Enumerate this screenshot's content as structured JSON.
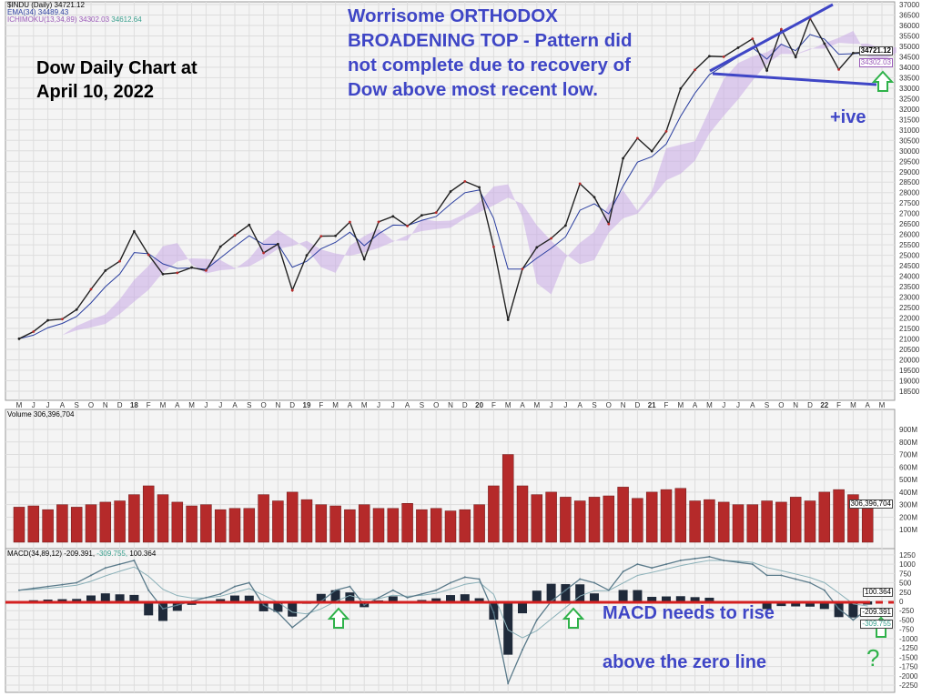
{
  "legend": {
    "price": "$INDU (Daily) 34721.12",
    "ema": "EMA(34) 34489.43",
    "ichimoku": "ICHIMOKU(13,34,89) 34302.03",
    "ichimoku_b": "34612.64",
    "volume": "Volume 306,396,704",
    "macd": "MACD(34,89,12) -209.391,",
    "macd_signal": "-309.755,",
    "macd_hist": "100.364"
  },
  "value_boxes": {
    "price": "34721.12",
    "ichimoku": "34302.03",
    "volume": "306,396,704",
    "macd_hist": "100.364",
    "macd": "-209.391",
    "macd_signal": "-309.755"
  },
  "annotations": {
    "title_line1": "Dow Daily Chart at",
    "title_line2": "April 10, 2022",
    "pattern_line1": "Worrisome ORTHODOX",
    "pattern_line2": "BROADENING TOP - Pattern did",
    "pattern_line3": "not complete due to recovery of",
    "pattern_line4": "Dow above most recent low.",
    "positive": "+ive",
    "macd_line1": "MACD needs to rise",
    "macd_line2": "above the zero line",
    "question": "?"
  },
  "colors": {
    "annotation_blue": "#3f46c6",
    "arrow_green": "#2fb24a",
    "zero_line_red": "#d42020",
    "ema_blue": "#2b3fa0",
    "cloud_purple": "#c9a9e6",
    "cloud_green": "#a9d4cc",
    "volume_red": "#b52a2a",
    "macd_line": "#5a7a8a"
  },
  "chart_data": [
    {
      "type": "line",
      "title": "$INDU (Daily)",
      "x_tick_labels": [
        "M",
        "J",
        "J",
        "A",
        "S",
        "O",
        "N",
        "D",
        "18",
        "F",
        "M",
        "A",
        "M",
        "J",
        "J",
        "A",
        "S",
        "O",
        "N",
        "D",
        "19",
        "F",
        "M",
        "A",
        "M",
        "J",
        "J",
        "A",
        "S",
        "O",
        "N",
        "D",
        "20",
        "F",
        "M",
        "A",
        "M",
        "J",
        "J",
        "A",
        "S",
        "O",
        "N",
        "D",
        "21",
        "F",
        "M",
        "A",
        "M",
        "J",
        "J",
        "A",
        "S",
        "O",
        "N",
        "D",
        "22",
        "F",
        "M",
        "A",
        "M"
      ],
      "y_ticks": [
        18500,
        19000,
        19500,
        20000,
        20500,
        21000,
        21500,
        22000,
        22500,
        23000,
        23500,
        24000,
        24500,
        25000,
        25500,
        26000,
        26500,
        27000,
        27500,
        28000,
        28500,
        29000,
        29500,
        30000,
        30500,
        31000,
        31500,
        32000,
        32500,
        33000,
        33500,
        34000,
        34500,
        35000,
        35500,
        36000,
        36500,
        37000
      ],
      "ylim": [
        18500,
        37000
      ],
      "grid": true,
      "series": [
        {
          "name": "$INDU",
          "values": [
            21009,
            21350,
            21891,
            21948,
            22405,
            23377,
            24272,
            24719,
            26149,
            25029,
            24103,
            24163,
            24416,
            24271,
            25415,
            25965,
            26458,
            25116,
            25538,
            23327,
            24999,
            25916,
            25929,
            26593,
            24815,
            26600,
            26864,
            26403,
            26917,
            27046,
            28051,
            28538,
            28256,
            25409,
            21917,
            24346,
            25383,
            25813,
            26428,
            28430,
            27782,
            26502,
            29639,
            30606,
            29983,
            30932,
            32982,
            33875,
            34529,
            34503,
            34935,
            35361,
            33844,
            35820,
            34484,
            36338,
            35132,
            33893,
            34678,
            34721.12
          ]
        }
      ]
    },
    {
      "type": "bar",
      "title": "Volume",
      "y_tick_labels": [
        "100M",
        "200M",
        "300M",
        "400M",
        "500M",
        "600M",
        "700M",
        "800M",
        "900M"
      ],
      "ylim": [
        0,
        900
      ],
      "unit": "M",
      "values": [
        280,
        290,
        260,
        300,
        280,
        300,
        320,
        330,
        380,
        450,
        380,
        320,
        290,
        300,
        260,
        270,
        270,
        380,
        330,
        400,
        340,
        300,
        290,
        260,
        300,
        270,
        270,
        310,
        260,
        270,
        250,
        260,
        300,
        450,
        700,
        450,
        380,
        400,
        360,
        330,
        360,
        370,
        440,
        350,
        400,
        420,
        430,
        330,
        340,
        320,
        300,
        300,
        330,
        320,
        360,
        330,
        400,
        420,
        380,
        306
      ]
    },
    {
      "type": "line",
      "title": "MACD(34,89,12)",
      "y_ticks": [
        1250,
        1000,
        750,
        500,
        250,
        0,
        -250,
        -500,
        -750,
        -1000,
        -1250,
        -1500,
        -1750,
        -2000,
        -2250
      ],
      "ylim": [
        -2250,
        1250
      ],
      "values": [
        300,
        350,
        400,
        450,
        500,
        700,
        900,
        1000,
        1100,
        300,
        -200,
        -100,
        0,
        100,
        200,
        400,
        500,
        -100,
        -300,
        -700,
        -400,
        0,
        300,
        400,
        -100,
        100,
        300,
        100,
        200,
        300,
        500,
        650,
        600,
        -300,
        -2200,
        -1300,
        -500,
        0,
        300,
        600,
        500,
        300,
        800,
        1000,
        900,
        1000,
        1100,
        1150,
        1200,
        1100,
        1050,
        1000,
        700,
        700,
        600,
        500,
        300,
        -200,
        -500,
        -209.391
      ]
    }
  ]
}
